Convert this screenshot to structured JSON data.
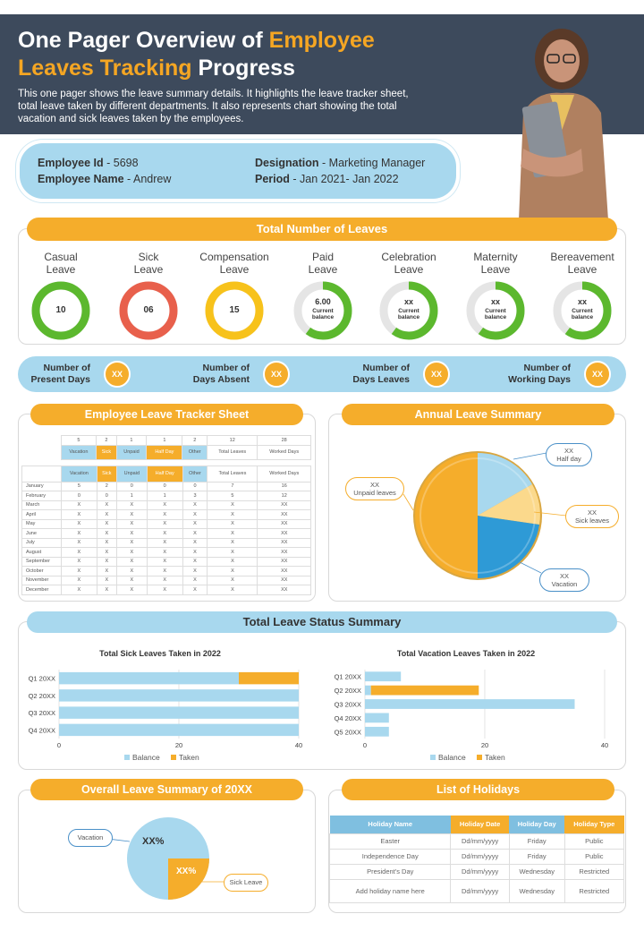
{
  "header": {
    "title_part1": "One Pager Overview of ",
    "title_highlight1": "Employee",
    "title_highlight2": "Leaves Tracking",
    "title_part2": " Progress",
    "subtitle": "This one pager shows the leave summary details. It highlights the leave tracker sheet, total leave taken by different departments. It also represents chart showing the total vacation and sick leaves taken by the  employees."
  },
  "employee": {
    "id_label": "Employee Id",
    "id_value": " - 5698",
    "name_label": "Employee  Name",
    "name_value": " - Andrew",
    "designation_label": "Designation",
    "designation_value": " - Marketing Manager",
    "period_label": "Period",
    "period_value": " - Jan 2021- Jan 2022"
  },
  "total_leaves": {
    "title": "Total Number of Leaves",
    "items": [
      {
        "name": "Casual Leave",
        "line1": "Casual",
        "line2": "Leave",
        "value": "10",
        "sub": "",
        "color": "#5cb82e",
        "fraction": 1.0
      },
      {
        "name": "Sick Leave",
        "line1": "Sick",
        "line2": "Leave",
        "value": "06",
        "sub": "",
        "color": "#e8604c",
        "fraction": 1.0
      },
      {
        "name": "Compensation Leave",
        "line1": "Compensation",
        "line2": "Leave",
        "value": "15",
        "sub": "",
        "color": "#f7c21b",
        "fraction": 1.0
      },
      {
        "name": "Paid Leave",
        "line1": "Paid",
        "line2": "Leave",
        "value": "6.00",
        "sub": "Current balance",
        "color": "#5cb82e",
        "fraction": 0.6
      },
      {
        "name": "Celebration Leave",
        "line1": "Celebration",
        "line2": "Leave",
        "value": "xx",
        "sub": "Current balance",
        "color": "#5cb82e",
        "fraction": 0.6
      },
      {
        "name": "Maternity Leave",
        "line1": "Maternity",
        "line2": "Leave",
        "value": "xx",
        "sub": "Current balance",
        "color": "#5cb82e",
        "fraction": 0.6
      },
      {
        "name": "Bereavement Leave",
        "line1": "Bereavement",
        "line2": "Leave",
        "value": "xx",
        "sub": "Current balance",
        "color": "#5cb82e",
        "fraction": 0.6
      }
    ]
  },
  "stats": [
    {
      "line1": "Number of",
      "line2": "Present Days",
      "value": "XX"
    },
    {
      "line1": "Number of",
      "line2": "Days Absent",
      "value": "XX"
    },
    {
      "line1": "Number of",
      "line2": "Days Leaves",
      "value": "XX"
    },
    {
      "line1": "Number of",
      "line2": "Working Days",
      "value": "XX"
    }
  ],
  "tracker": {
    "title": "Employee Leave Tracker Sheet",
    "summary_values": [
      "5",
      "2",
      "1",
      "1",
      "2",
      "12",
      "28"
    ],
    "headers": [
      "Vacation",
      "Sick",
      "Unpaid",
      "Half Day",
      "Other",
      "Total Leaves",
      "Worked Days"
    ],
    "rows": [
      [
        "January",
        "5",
        "2",
        "0",
        "0",
        "0",
        "7",
        "16"
      ],
      [
        "February",
        "0",
        "0",
        "1",
        "1",
        "3",
        "5",
        "12"
      ],
      [
        "March",
        "X",
        "X",
        "X",
        "X",
        "X",
        "X",
        "XX"
      ],
      [
        "April",
        "X",
        "X",
        "X",
        "X",
        "X",
        "X",
        "XX"
      ],
      [
        "May",
        "X",
        "X",
        "X",
        "X",
        "X",
        "X",
        "XX"
      ],
      [
        "June",
        "X",
        "X",
        "X",
        "X",
        "X",
        "X",
        "XX"
      ],
      [
        "July",
        "X",
        "X",
        "X",
        "X",
        "X",
        "X",
        "XX"
      ],
      [
        "August",
        "X",
        "X",
        "X",
        "X",
        "X",
        "X",
        "XX"
      ],
      [
        "September",
        "X",
        "X",
        "X",
        "X",
        "X",
        "X",
        "XX"
      ],
      [
        "October",
        "X",
        "X",
        "X",
        "X",
        "X",
        "X",
        "XX"
      ],
      [
        "November",
        "X",
        "X",
        "X",
        "X",
        "X",
        "X",
        "XX"
      ],
      [
        "December",
        "X",
        "X",
        "X",
        "X",
        "X",
        "X",
        "XX"
      ]
    ]
  },
  "annual": {
    "title": "Annual Leave Summary",
    "labels": {
      "half_day": {
        "value": "XX",
        "name": "Half day"
      },
      "unpaid": {
        "value": "XX",
        "name": "Unpaid leaves"
      },
      "sick": {
        "value": "XX",
        "name": "Sick leaves"
      },
      "vacation": {
        "value": "XX",
        "name": "Vacation"
      }
    }
  },
  "status_summary": {
    "title": "Total Leave Status Summary"
  },
  "chart_data": [
    {
      "type": "bar",
      "orientation": "horizontal",
      "stacked": true,
      "title": "Total Sick Leaves Taken in 2022",
      "categories": [
        "Q1 20XX",
        "Q2 20XX",
        "Q3 20XX",
        "Q4 20XX"
      ],
      "series": [
        {
          "name": "Balance",
          "values": [
            30,
            40,
            40,
            40
          ],
          "color": "#a8d8ee"
        },
        {
          "name": "Taken",
          "values": [
            10,
            0,
            0,
            0
          ],
          "color": "#f5ad2b"
        }
      ],
      "xlim": [
        0,
        40
      ],
      "ticks": [
        "0",
        "20",
        "40"
      ]
    },
    {
      "type": "bar",
      "orientation": "horizontal",
      "stacked": true,
      "title": "Total Vacation Leaves Taken in 2022",
      "categories": [
        "Q1 20XX",
        "Q2 20XX",
        "Q3 20XX",
        "Q4 20XX",
        "Q5 20XX"
      ],
      "series": [
        {
          "name": "Balance",
          "values": [
            6,
            1,
            35,
            4,
            4
          ],
          "color": "#a8d8ee"
        },
        {
          "name": "Taken",
          "values": [
            0,
            18,
            0,
            0,
            0
          ],
          "color": "#f5ad2b"
        }
      ],
      "xlim": [
        0,
        40
      ],
      "ticks": [
        "0",
        "20",
        "40"
      ]
    },
    {
      "type": "pie",
      "title": "Annual Leave Summary",
      "labels": [
        "Half day",
        "Sick leaves",
        "Vacation",
        "Unpaid leaves"
      ],
      "values": [
        15,
        15,
        20,
        50
      ]
    },
    {
      "type": "pie",
      "title": "Overall Leave Summary of 20XX",
      "labels": [
        "Vacation",
        "Sick Leave"
      ],
      "values": [
        75,
        25
      ],
      "data_labels": [
        "XX%",
        "XX%"
      ]
    }
  ],
  "overall": {
    "title": "Overall Leave Summary of 20XX",
    "vacation_label": "Vacation",
    "sick_label": "Sick Leave",
    "vacation_pct": "XX%",
    "sick_pct": "XX%"
  },
  "holidays": {
    "title": "List of Holidays",
    "headers": [
      "Holiday Name",
      "Holiday Date",
      "Holiday Day",
      "Holiday Type"
    ],
    "rows": [
      [
        "Easter",
        "Dd/mm/yyyy",
        "Friday",
        "Public"
      ],
      [
        "Independence Day",
        "Dd/mm/yyyy",
        "Friday",
        "Public"
      ],
      [
        "President's Day",
        "Dd/mm/yyyy",
        "Wednesday",
        "Restricted"
      ],
      [
        "Add holiday name here",
        "Dd/mm/yyyy",
        "Wednesday",
        "Restricted"
      ]
    ]
  }
}
